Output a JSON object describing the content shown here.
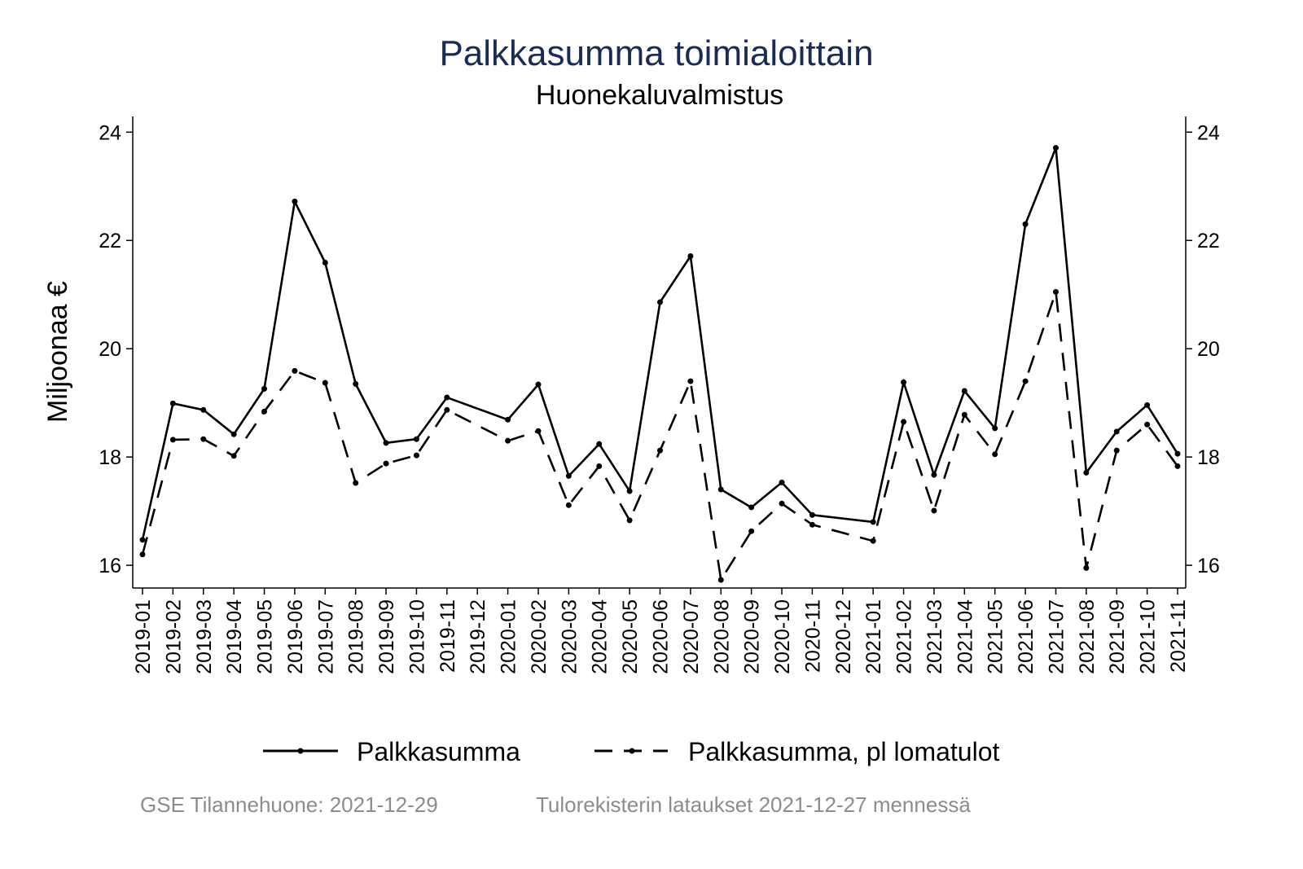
{
  "chart_data": {
    "type": "line",
    "title": "Palkkasumma toimialoittain",
    "subtitle": "Huonekaluvalmistus",
    "xlabel": "",
    "ylabel": "Miljoonaa €",
    "ylim": [
      15.58,
      24.29
    ],
    "yticks": [
      16,
      18,
      20,
      22,
      24
    ],
    "grid": false,
    "legend_position": "bottom",
    "categories": [
      "2019-01",
      "2019-02",
      "2019-03",
      "2019-04",
      "2019-05",
      "2019-06",
      "2019-07",
      "2019-08",
      "2019-09",
      "2019-10",
      "2019-11",
      "2019-12",
      "2020-01",
      "2020-02",
      "2020-03",
      "2020-04",
      "2020-05",
      "2020-06",
      "2020-07",
      "2020-08",
      "2020-09",
      "2020-10",
      "2020-11",
      "2020-12",
      "2021-01",
      "2021-02",
      "2021-03",
      "2021-04",
      "2021-05",
      "2021-06",
      "2021-07",
      "2021-08",
      "2021-09",
      "2021-10",
      "2021-11"
    ],
    "series": [
      {
        "name": "Palkkasumma",
        "style": "solid",
        "color": "#000000",
        "values": [
          16.47,
          18.99,
          18.87,
          18.42,
          19.26,
          22.72,
          21.59,
          19.35,
          18.26,
          18.33,
          19.1,
          null,
          18.69,
          19.34,
          17.65,
          18.24,
          17.37,
          20.86,
          21.71,
          17.4,
          17.07,
          17.53,
          16.93,
          null,
          16.8,
          19.38,
          17.67,
          19.22,
          18.53,
          22.3,
          23.71,
          17.71,
          18.47,
          18.96,
          18.06
        ]
      },
      {
        "name": "Palkkasumma, pl lomatulot",
        "style": "dashed",
        "color": "#000000",
        "values": [
          16.2,
          18.32,
          18.33,
          18.02,
          18.84,
          19.59,
          19.37,
          17.52,
          17.88,
          18.03,
          18.87,
          null,
          18.3,
          18.48,
          17.11,
          17.83,
          16.83,
          18.12,
          19.4,
          15.73,
          16.63,
          17.14,
          16.75,
          null,
          16.45,
          18.65,
          17.01,
          18.78,
          18.05,
          19.4,
          21.05,
          15.95,
          18.12,
          18.6,
          17.83
        ]
      }
    ]
  },
  "footer": {
    "left": "GSE Tilannehuone: 2021-12-29",
    "right": "Tulorekisterin lataukset 2021-12-27 mennessä"
  },
  "colors": {
    "title": "#1a2b57",
    "footer": "#8c8c8c"
  }
}
